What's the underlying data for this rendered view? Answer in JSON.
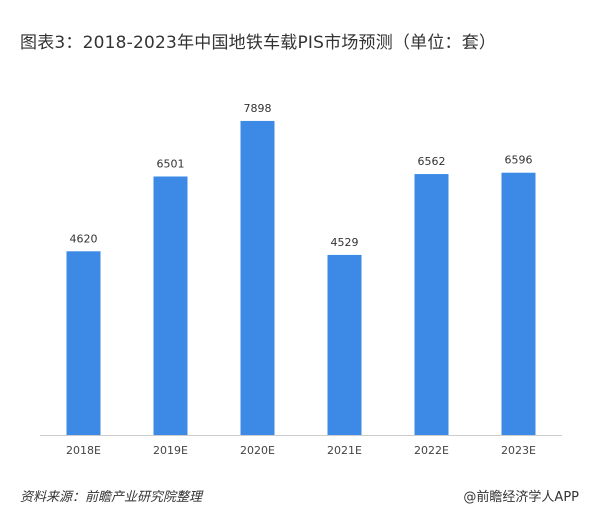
{
  "title": "图表3：2018-2023年中国地铁车载PIS市场预测（单位：套）",
  "footer": {
    "source": "资料来源：前瞻产业研究院整理",
    "credit": "@前瞻经济学人APP"
  },
  "colors": {
    "bar": "#3c8ae6",
    "axis": "#cccccc"
  },
  "chart_data": {
    "type": "bar",
    "title": "图表3：2018-2023年中国地铁车载PIS市场预测（单位：套）",
    "categories": [
      "2018E",
      "2019E",
      "2020E",
      "2021E",
      "2022E",
      "2023E"
    ],
    "values": [
      4620,
      6501,
      7898,
      4529,
      6562,
      6596
    ],
    "xlabel": "",
    "ylabel": "",
    "ylim": [
      0,
      8500
    ],
    "grid": false,
    "legend": "none"
  }
}
